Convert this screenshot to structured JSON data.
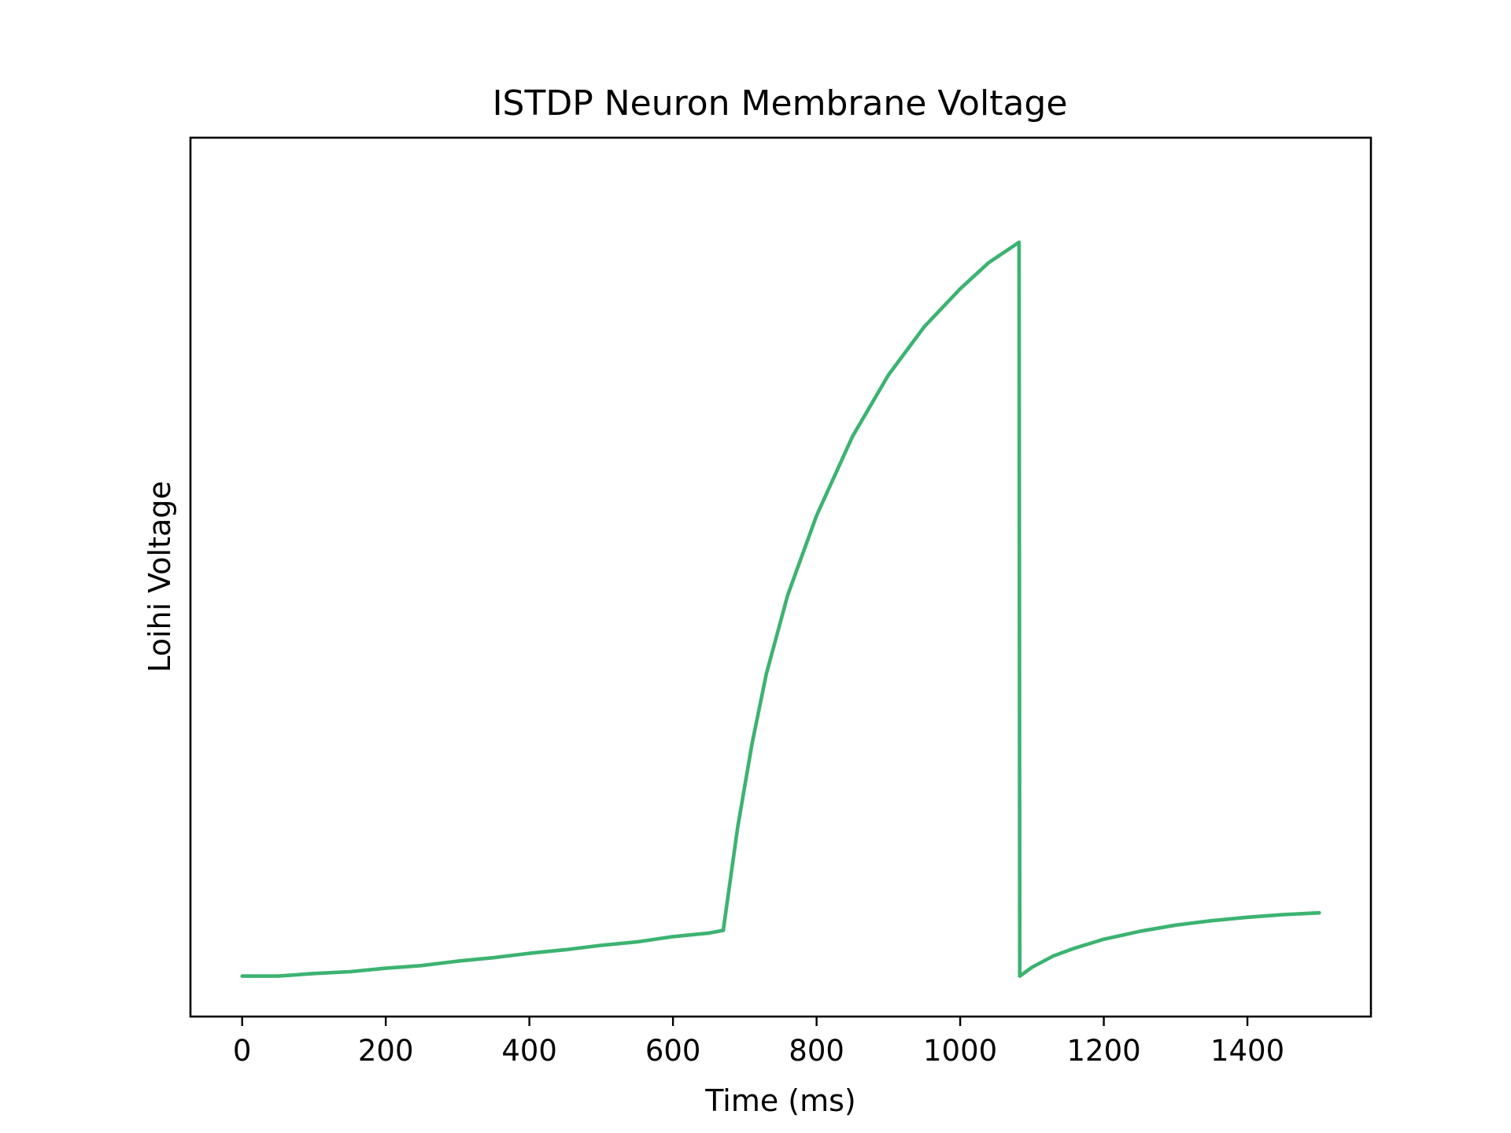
{
  "chart_data": {
    "type": "line",
    "title": "ISTDP Neuron Membrane Voltage",
    "xlabel": "Time (ms)",
    "ylabel": "Loihi Voltage",
    "xlim": [
      -72,
      1572
    ],
    "ylim": [
      -10,
      990
    ],
    "x_ticks": [
      0,
      200,
      400,
      600,
      800,
      1000,
      1200,
      1400
    ],
    "x_tick_labels": [
      "0",
      "200",
      "400",
      "600",
      "800",
      "1000",
      "1200",
      "1400"
    ],
    "y_ticks_shown": false,
    "grid": false,
    "legend": "none",
    "series": [
      {
        "color": "#3cb371",
        "points": [
          [
            0,
            36
          ],
          [
            50,
            36
          ],
          [
            100,
            39
          ],
          [
            150,
            41
          ],
          [
            200,
            45
          ],
          [
            250,
            48
          ],
          [
            300,
            53
          ],
          [
            350,
            57
          ],
          [
            400,
            62
          ],
          [
            450,
            66
          ],
          [
            500,
            71
          ],
          [
            550,
            75
          ],
          [
            600,
            81
          ],
          [
            650,
            85
          ],
          [
            670,
            88
          ],
          [
            690,
            205
          ],
          [
            710,
            300
          ],
          [
            730,
            380
          ],
          [
            760,
            470
          ],
          [
            800,
            560
          ],
          [
            850,
            650
          ],
          [
            900,
            720
          ],
          [
            950,
            775
          ],
          [
            1000,
            818
          ],
          [
            1040,
            848
          ],
          [
            1082,
            871
          ],
          [
            1083,
            36
          ],
          [
            1100,
            46
          ],
          [
            1130,
            59
          ],
          [
            1160,
            68
          ],
          [
            1200,
            78
          ],
          [
            1250,
            87
          ],
          [
            1300,
            94
          ],
          [
            1350,
            99
          ],
          [
            1400,
            103
          ],
          [
            1450,
            106
          ],
          [
            1500,
            108
          ]
        ]
      }
    ]
  }
}
